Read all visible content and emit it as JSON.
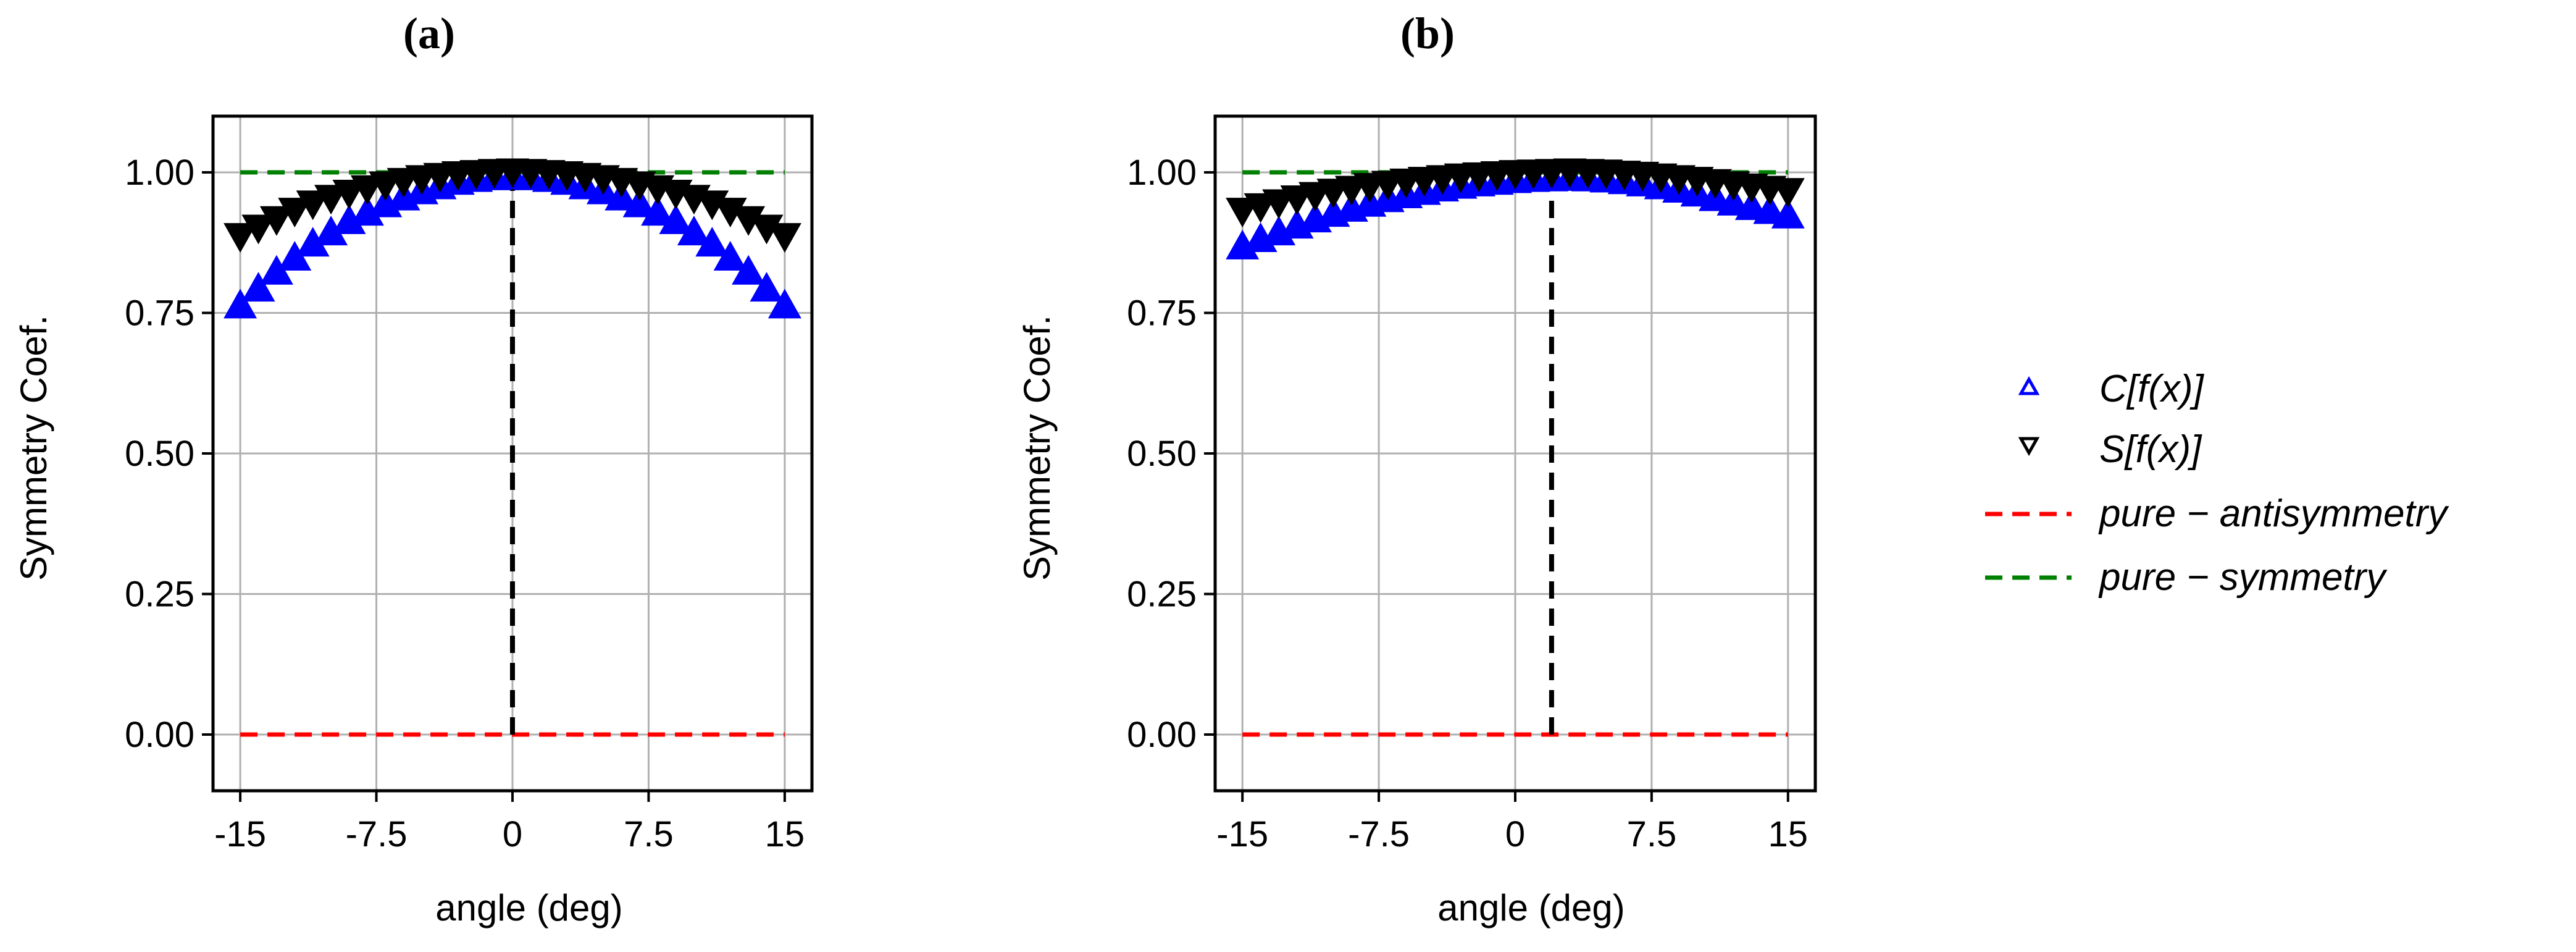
{
  "figure": {
    "panel_labels": [
      "(a)",
      "(b)"
    ]
  },
  "legend": {
    "entries": [
      {
        "label": "C[f(x)]",
        "marker": "triangle-up",
        "color": "#0000ff"
      },
      {
        "label": "S[f(x)]",
        "marker": "triangle-down",
        "color": "#000000"
      },
      {
        "label": "pure − antisymmetry",
        "marker": "dashed-line",
        "color": "#ff0000"
      },
      {
        "label": "pure − symmetry",
        "marker": "dashed-line",
        "color": "#008000"
      }
    ]
  },
  "chart_data": [
    {
      "type": "scatter",
      "panel": "(a)",
      "xlabel": "angle (deg)",
      "ylabel": "Symmetry Coef.",
      "xlim": [
        -16.5,
        16.5
      ],
      "ylim": [
        -0.1,
        1.1
      ],
      "xticks": [
        -15,
        -7.5,
        0,
        7.5,
        15
      ],
      "xtick_labels": [
        "-15",
        "-7.5",
        "0",
        "7.5",
        "15"
      ],
      "yticks": [
        0,
        0.25,
        0.5,
        0.75,
        1.0
      ],
      "ytick_labels": [
        "0.00",
        "0.25",
        "0.50",
        "0.75",
        "1.00"
      ],
      "grid": true,
      "x": [
        -15,
        -14,
        -13,
        -12,
        -11,
        -10,
        -9,
        -8,
        -7,
        -6,
        -5,
        -4,
        -3,
        -2,
        -1,
        0,
        1,
        2,
        3,
        4,
        5,
        6,
        7,
        8,
        9,
        10,
        11,
        12,
        13,
        14,
        15
      ],
      "series": [
        {
          "name": "C[f(x)]",
          "marker": "triangle-up",
          "color": "#0000ff",
          "values": [
            0.76,
            0.79,
            0.82,
            0.845,
            0.87,
            0.89,
            0.91,
            0.925,
            0.94,
            0.952,
            0.963,
            0.972,
            0.98,
            0.985,
            0.988,
            0.99,
            0.988,
            0.985,
            0.98,
            0.972,
            0.963,
            0.952,
            0.94,
            0.925,
            0.91,
            0.89,
            0.87,
            0.845,
            0.82,
            0.79,
            0.76
          ]
        },
        {
          "name": "S[f(x)]",
          "marker": "triangle-down",
          "color": "#000000",
          "values": [
            0.89,
            0.905,
            0.92,
            0.935,
            0.948,
            0.958,
            0.967,
            0.975,
            0.982,
            0.988,
            0.993,
            0.997,
            1.0,
            1.002,
            1.004,
            1.005,
            1.004,
            1.002,
            1.0,
            0.997,
            0.993,
            0.988,
            0.982,
            0.975,
            0.967,
            0.958,
            0.948,
            0.935,
            0.92,
            0.905,
            0.89
          ]
        }
      ],
      "reference_lines": {
        "pure_antisymmetry": 0,
        "pure_symmetry": 1,
        "symmetry_axis_x": 0
      }
    },
    {
      "type": "scatter",
      "panel": "(b)",
      "xlabel": "angle (deg)",
      "ylabel": "Symmetry Coef.",
      "xlim": [
        -16.5,
        16.5
      ],
      "ylim": [
        -0.1,
        1.1
      ],
      "xticks": [
        -15,
        -7.5,
        0,
        7.5,
        15
      ],
      "xtick_labels": [
        "-15",
        "-7.5",
        "0",
        "7.5",
        "15"
      ],
      "yticks": [
        0,
        0.25,
        0.5,
        0.75,
        1.0
      ],
      "ytick_labels": [
        "0.00",
        "0.25",
        "0.50",
        "0.75",
        "1.00"
      ],
      "grid": true,
      "x": [
        -15,
        -14,
        -13,
        -12,
        -11,
        -10,
        -9,
        -8,
        -7,
        -6,
        -5,
        -4,
        -3,
        -2,
        -1,
        0,
        1,
        2,
        3,
        4,
        5,
        6,
        7,
        8,
        9,
        10,
        11,
        12,
        13,
        14,
        15
      ],
      "series": [
        {
          "name": "C[f(x)]",
          "marker": "triangle-up",
          "color": "#0000ff",
          "values": [
            0.865,
            0.878,
            0.89,
            0.902,
            0.913,
            0.923,
            0.932,
            0.941,
            0.949,
            0.956,
            0.962,
            0.968,
            0.973,
            0.977,
            0.98,
            0.983,
            0.985,
            0.986,
            0.987,
            0.986,
            0.984,
            0.981,
            0.977,
            0.972,
            0.966,
            0.959,
            0.951,
            0.943,
            0.935,
            0.928,
            0.92
          ]
        },
        {
          "name": "S[f(x)]",
          "marker": "triangle-down",
          "color": "#000000",
          "values": [
            0.935,
            0.943,
            0.95,
            0.957,
            0.963,
            0.969,
            0.974,
            0.979,
            0.983,
            0.987,
            0.99,
            0.993,
            0.996,
            0.998,
            1.0,
            1.002,
            1.003,
            1.004,
            1.005,
            1.004,
            1.003,
            1.001,
            0.999,
            0.996,
            0.993,
            0.99,
            0.986,
            0.982,
            0.978,
            0.974,
            0.97
          ]
        }
      ],
      "reference_lines": {
        "pure_antisymmetry": 0,
        "pure_symmetry": 1,
        "symmetry_axis_x": 2
      }
    }
  ]
}
